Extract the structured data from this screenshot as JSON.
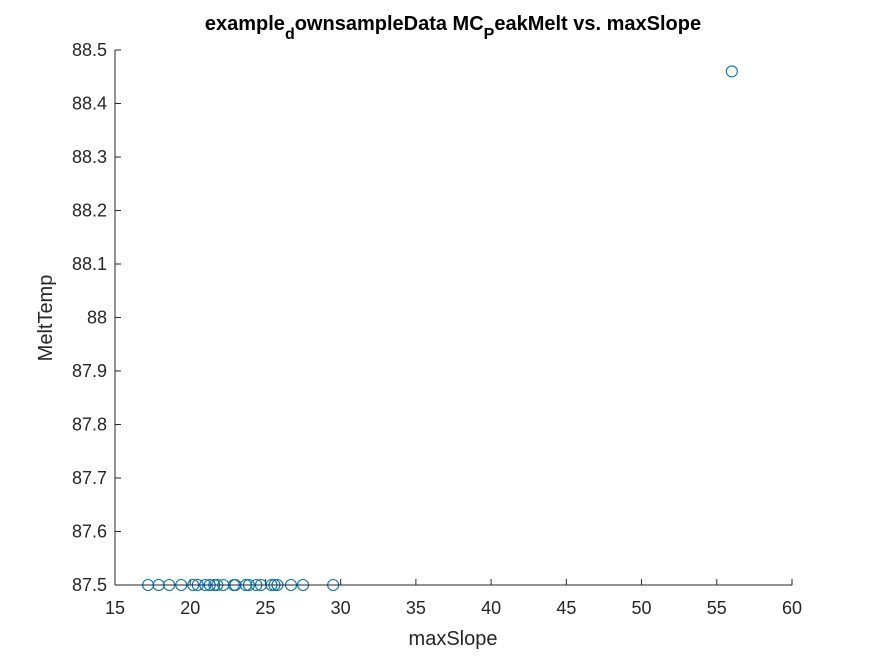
{
  "chart_data": {
    "type": "scatter",
    "title": {
      "parts": [
        {
          "text": "example",
          "sub": false
        },
        {
          "text": "d",
          "sub": true
        },
        {
          "text": "ownsampleData MC",
          "sub": false
        },
        {
          "text": "P",
          "sub": true
        },
        {
          "text": "eakMelt vs. maxSlope",
          "sub": false
        }
      ]
    },
    "xlabel": "maxSlope",
    "ylabel": "MeltTemp",
    "xlim": [
      15,
      60
    ],
    "ylim": [
      87.5,
      88.5
    ],
    "xticks": [
      "15",
      "20",
      "25",
      "30",
      "35",
      "40",
      "45",
      "50",
      "55",
      "60"
    ],
    "yticks": [
      "87.5",
      "87.6",
      "87.7",
      "87.8",
      "87.9",
      "88",
      "88.1",
      "88.2",
      "88.3",
      "88.4",
      "88.5"
    ],
    "grid": false,
    "marker": "open-circle",
    "marker_color": "#0072BD",
    "points": [
      {
        "x": 17.2,
        "y": 87.5
      },
      {
        "x": 17.9,
        "y": 87.5
      },
      {
        "x": 18.6,
        "y": 87.5
      },
      {
        "x": 19.4,
        "y": 87.5
      },
      {
        "x": 20.2,
        "y": 87.5
      },
      {
        "x": 20.5,
        "y": 87.5
      },
      {
        "x": 21.0,
        "y": 87.5
      },
      {
        "x": 21.3,
        "y": 87.5
      },
      {
        "x": 21.6,
        "y": 87.5
      },
      {
        "x": 21.8,
        "y": 87.5
      },
      {
        "x": 22.2,
        "y": 87.5
      },
      {
        "x": 22.9,
        "y": 87.5
      },
      {
        "x": 23.0,
        "y": 87.5
      },
      {
        "x": 23.7,
        "y": 87.5
      },
      {
        "x": 23.9,
        "y": 87.5
      },
      {
        "x": 24.4,
        "y": 87.5
      },
      {
        "x": 24.7,
        "y": 87.5
      },
      {
        "x": 25.4,
        "y": 87.5
      },
      {
        "x": 25.6,
        "y": 87.5
      },
      {
        "x": 25.8,
        "y": 87.5
      },
      {
        "x": 26.7,
        "y": 87.5
      },
      {
        "x": 27.5,
        "y": 87.5
      },
      {
        "x": 29.5,
        "y": 87.5
      },
      {
        "x": 56.0,
        "y": 88.46
      }
    ]
  }
}
